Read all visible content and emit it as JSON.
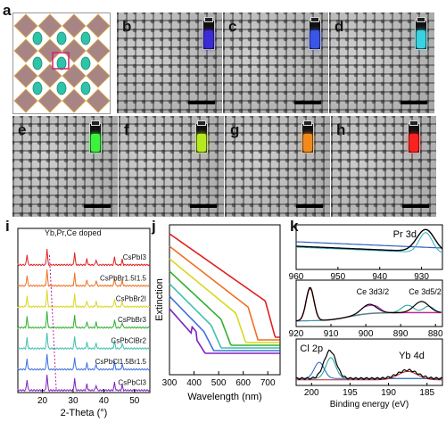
{
  "panels": {
    "a": "a",
    "b": "b",
    "c": "c",
    "d": "d",
    "e": "e",
    "f": "f",
    "g": "g",
    "h": "h",
    "i": "i",
    "j": "j",
    "k": "k"
  },
  "vials": {
    "b": "#3a2bd6",
    "c": "#3a55e8",
    "d": "#39d2e0",
    "e": "#3df23d",
    "f": "#b6e81f",
    "g": "#f08a1a",
    "h": "#ff2020"
  },
  "chart_data": [
    {
      "type": "line",
      "panel": "i",
      "title": "Yb,Pr,Ce doped",
      "xlabel": "2-Theta (°)",
      "ylabel": "",
      "xlim": [
        12,
        55
      ],
      "xticks": [
        "20",
        "30",
        "40",
        "50"
      ],
      "series": [
        {
          "name": "CsPbI3",
          "color": "#e02020"
        },
        {
          "name": "CsPbBr1.5I1.5",
          "color": "#f07020"
        },
        {
          "name": "CsPbBr2I",
          "color": "#d8d820"
        },
        {
          "name": "CsPbBr3",
          "color": "#30b030"
        },
        {
          "name": "CsPbClBr2",
          "color": "#40c0b0"
        },
        {
          "name": "CsPbCl1.5Br1.5",
          "color": "#4070e0"
        },
        {
          "name": "CsPbCl3",
          "color": "#8020c0"
        }
      ],
      "peaks": [
        15,
        21.5,
        30.5,
        34.5,
        37.5,
        43.5,
        46
      ]
    },
    {
      "type": "line",
      "panel": "j",
      "xlabel": "Wavelength (nm)",
      "ylabel": "Extinction",
      "xlim": [
        300,
        750
      ],
      "xticks": [
        "300",
        "400",
        "500",
        "600",
        "700"
      ],
      "series": [
        {
          "color": "#e02020",
          "edge": 690
        },
        {
          "color": "#f07020",
          "edge": 620
        },
        {
          "color": "#d8d820",
          "edge": 570
        },
        {
          "color": "#30b030",
          "edge": 510
        },
        {
          "color": "#40c0b0",
          "edge": 470
        },
        {
          "color": "#4070e0",
          "edge": 440
        },
        {
          "color": "#8020c0",
          "edge": 405
        }
      ]
    },
    {
      "type": "line",
      "panel": "k-top",
      "annotation": "Pr 3d",
      "xlim": [
        960,
        925
      ],
      "xticks": [
        "960",
        "950",
        "940",
        "930"
      ]
    },
    {
      "type": "line",
      "panel": "k-mid",
      "annotations": [
        "Ce 3d3/2",
        "Ce 3d5/2"
      ],
      "xlim": [
        920,
        878
      ],
      "xticks": [
        "920",
        "910",
        "900",
        "890",
        "880"
      ]
    },
    {
      "type": "line",
      "panel": "k-bottom",
      "annotations": [
        "Cl 2p",
        "Yb 4d"
      ],
      "xlabel": "Binding energy (eV)",
      "xlim": [
        202,
        183
      ],
      "xticks": [
        "200",
        "195",
        "190",
        "185"
      ]
    }
  ]
}
